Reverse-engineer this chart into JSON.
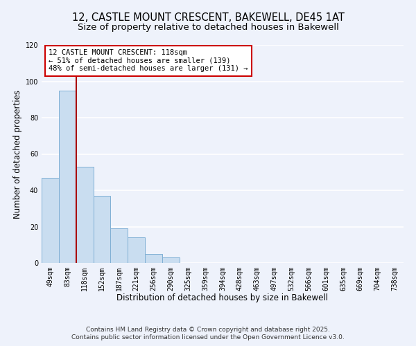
{
  "title_line1": "12, CASTLE MOUNT CRESCENT, BAKEWELL, DE45 1AT",
  "title_line2": "Size of property relative to detached houses in Bakewell",
  "xlabel": "Distribution of detached houses by size in Bakewell",
  "ylabel": "Number of detached properties",
  "bar_labels": [
    "49sqm",
    "83sqm",
    "118sqm",
    "152sqm",
    "187sqm",
    "221sqm",
    "256sqm",
    "290sqm",
    "325sqm",
    "359sqm",
    "394sqm",
    "428sqm",
    "463sqm",
    "497sqm",
    "532sqm",
    "566sqm",
    "601sqm",
    "635sqm",
    "669sqm",
    "704sqm",
    "738sqm"
  ],
  "bar_values": [
    47,
    95,
    53,
    37,
    19,
    14,
    5,
    3,
    0,
    0,
    0,
    0,
    0,
    0,
    0,
    0,
    0,
    0,
    0,
    0,
    0
  ],
  "bar_color": "#c9ddf0",
  "bar_edge_color": "#7fafd4",
  "vline_index": 2,
  "vline_color": "#aa0000",
  "ann_line1": "12 CASTLE MOUNT CRESCENT: 118sqm",
  "ann_line2": "← 51% of detached houses are smaller (139)",
  "ann_line3": "48% of semi-detached houses are larger (131) →",
  "ylim": [
    0,
    120
  ],
  "yticks": [
    0,
    20,
    40,
    60,
    80,
    100,
    120
  ],
  "background_color": "#eef2fb",
  "grid_color": "#ffffff",
  "footer_line1": "Contains HM Land Registry data © Crown copyright and database right 2025.",
  "footer_line2": "Contains public sector information licensed under the Open Government Licence v3.0.",
  "title_fontsize": 10.5,
  "subtitle_fontsize": 9.5,
  "axis_label_fontsize": 8.5,
  "tick_fontsize": 7,
  "ann_fontsize": 7.5,
  "footer_fontsize": 6.5
}
